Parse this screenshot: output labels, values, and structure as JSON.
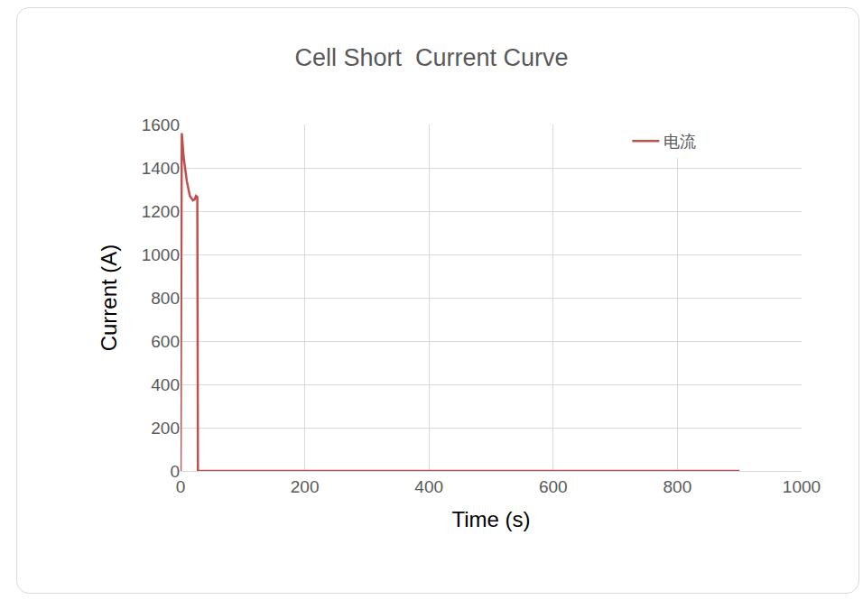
{
  "chart_data": {
    "type": "line",
    "title": "Cell Short  Current Curve",
    "x_label": "Time (s)",
    "y_label": "Current (A)",
    "x": [
      0,
      2,
      5,
      10,
      15,
      20,
      23,
      25,
      27,
      28,
      900
    ],
    "series": [
      {
        "name": "电流",
        "color": "#c0504d",
        "values": [
          0,
          1560,
          1450,
          1340,
          1270,
          1250,
          1255,
          1270,
          1265,
          0,
          0
        ]
      }
    ],
    "xlim": [
      0,
      1000
    ],
    "xticks": [
      0,
      200,
      400,
      600,
      800,
      1000
    ],
    "ylim": [
      0,
      1600
    ],
    "yticks": [
      0,
      200,
      400,
      600,
      800,
      1000,
      1200,
      1400,
      1600
    ],
    "grid": true,
    "legend": "top right"
  }
}
